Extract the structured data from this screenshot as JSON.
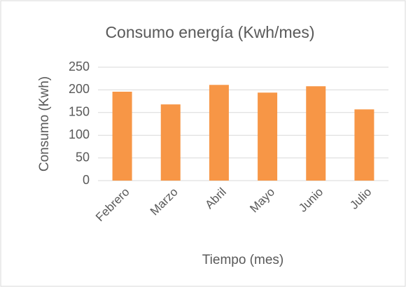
{
  "chart_data": {
    "type": "bar",
    "title": "Consumo energía (Kwh/mes)",
    "x_label": "Tiempo (mes)",
    "y_label": "Consumo (Kwh)",
    "categories": [
      "Febrero",
      "Marzo",
      "Abril",
      "Mayo",
      "Junio",
      "Julio"
    ],
    "values": [
      196,
      168,
      211,
      194,
      208,
      157
    ],
    "color": "#f79646",
    "ylim": [
      0,
      250
    ],
    "yticks": [
      0,
      50,
      100,
      150,
      200,
      250
    ],
    "grid": true
  }
}
